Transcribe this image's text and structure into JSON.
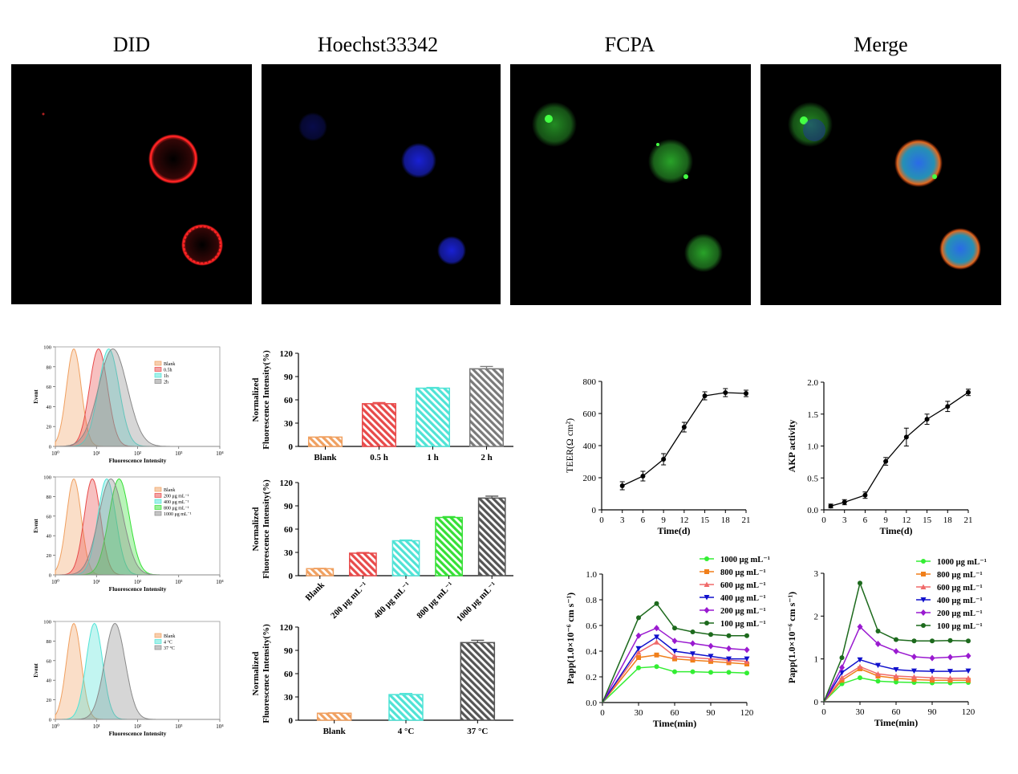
{
  "panels": {
    "titles": [
      "DID",
      "Hoechst33342",
      "FCPA",
      "Merge"
    ]
  },
  "colors": {
    "orange": "#F0A060",
    "red": "#E84A4A",
    "cyan": "#4FE3D6",
    "gray": "#7A7A7A",
    "green": "#36E036",
    "dark": "#333333",
    "blue": "#1010CC",
    "purple": "#9A1AD0",
    "darkgreen": "#1D6A1D",
    "salmon": "#F08080",
    "lime": "#33EE33"
  },
  "chart_data": [
    {
      "id": "flow1",
      "type": "area",
      "xlabel": "Fluorescence Intensity",
      "ylabel": "Event",
      "ylim": [
        0,
        100
      ],
      "xlim": [
        0,
        4
      ],
      "xscale": "log",
      "x_tick_labels": [
        "10⁰",
        "10¹",
        "10²",
        "10³",
        "10⁴"
      ],
      "y_ticks": [
        "0",
        "20",
        "40",
        "60",
        "80",
        "100"
      ],
      "series": [
        {
          "name": "Blank",
          "color": "#F0A060",
          "peak": 0.45,
          "sd": 0.18
        },
        {
          "name": "0.5h",
          "color": "#E84A4A",
          "peak": 1.05,
          "sd": 0.22
        },
        {
          "name": "1h",
          "color": "#4FE3D6",
          "peak": 1.3,
          "sd": 0.25
        },
        {
          "name": "2h",
          "color": "#8A8A8A",
          "peak": 1.4,
          "sd": 0.35
        }
      ]
    },
    {
      "id": "flow2",
      "type": "area",
      "xlabel": "Fluorescence Intensity",
      "ylabel": "Event",
      "ylim": [
        0,
        100
      ],
      "xlim": [
        0,
        4
      ],
      "xscale": "log",
      "x_tick_labels": [
        "10⁰",
        "10¹",
        "10²",
        "10³",
        "10⁴"
      ],
      "y_ticks": [
        "0",
        "20",
        "40",
        "60",
        "80",
        "100"
      ],
      "series": [
        {
          "name": "Blank",
          "color": "#F0A060",
          "peak": 0.45,
          "sd": 0.18
        },
        {
          "name": "200 μg mL⁻¹",
          "color": "#E84A4A",
          "peak": 0.9,
          "sd": 0.2
        },
        {
          "name": "400 μg mL⁻¹",
          "color": "#4FE3D6",
          "peak": 1.25,
          "sd": 0.22
        },
        {
          "name": "800 μg mL⁻¹",
          "color": "#36E036",
          "peak": 1.55,
          "sd": 0.25
        },
        {
          "name": "1000 μg mL⁻¹",
          "color": "#8A8A8A",
          "peak": 1.35,
          "sd": 0.3
        }
      ]
    },
    {
      "id": "flow3",
      "type": "area",
      "xlabel": "Fluorescence Intensity",
      "ylabel": "Event",
      "ylim": [
        0,
        100
      ],
      "xlim": [
        0,
        4
      ],
      "xscale": "log",
      "x_tick_labels": [
        "10⁰",
        "10¹",
        "10²",
        "10³",
        "10⁴"
      ],
      "y_ticks": [
        "0",
        "20",
        "40",
        "60",
        "80",
        "100"
      ],
      "series": [
        {
          "name": "Blank",
          "color": "#F0A060",
          "peak": 0.45,
          "sd": 0.18
        },
        {
          "name": "4 °C",
          "color": "#4FE3D6",
          "peak": 0.95,
          "sd": 0.2
        },
        {
          "name": "37 °C",
          "color": "#8A8A8A",
          "peak": 1.45,
          "sd": 0.25
        }
      ]
    },
    {
      "id": "bar1",
      "type": "bar",
      "ylabel_lines": [
        "Normalized",
        "Fluorescence Intensity(%)"
      ],
      "ylim": [
        0,
        120
      ],
      "y_ticks": [
        0,
        30,
        60,
        90,
        120
      ],
      "categories": [
        "Blank",
        "0.5 h",
        "1 h",
        "2 h"
      ],
      "values": [
        12,
        55,
        75,
        100
      ],
      "errors": [
        0.5,
        1.5,
        1,
        3
      ],
      "colors": [
        "#F0A060",
        "#E84A4A",
        "#4FE3D6",
        "#7A7A7A"
      ],
      "rotate_labels": false
    },
    {
      "id": "bar2",
      "type": "bar",
      "ylabel_lines": [
        "Normalized",
        "Fluorescence Intensity(%)"
      ],
      "ylim": [
        0,
        120
      ],
      "y_ticks": [
        0,
        30,
        60,
        90,
        120
      ],
      "categories": [
        "Blank",
        "200 μg mL⁻¹",
        "400 μg mL⁻¹",
        "800 μg mL⁻¹",
        "1000 μg mL⁻¹"
      ],
      "values": [
        9,
        29,
        45,
        75,
        100
      ],
      "errors": [
        0.5,
        0.8,
        1,
        1.2,
        2.5
      ],
      "colors": [
        "#F0A060",
        "#E84A4A",
        "#4FE3D6",
        "#36E036",
        "#555555"
      ],
      "rotate_labels": true
    },
    {
      "id": "bar3",
      "type": "bar",
      "ylabel_lines": [
        "Normalized",
        "Fluorescence Intensity(%)"
      ],
      "ylim": [
        0,
        120
      ],
      "y_ticks": [
        0,
        30,
        60,
        90,
        120
      ],
      "categories": [
        "Blank",
        "4 °C",
        "37 °C"
      ],
      "values": [
        9,
        33,
        100
      ],
      "errors": [
        0.5,
        1.5,
        3
      ],
      "colors": [
        "#F0A060",
        "#4FE3D6",
        "#555555"
      ],
      "rotate_labels": false
    },
    {
      "id": "teer",
      "type": "line",
      "xlabel": "Time(d)",
      "ylabel": "TEER(Ω cm²)",
      "xlim": [
        0,
        21
      ],
      "ylim": [
        0,
        800
      ],
      "x_ticks": [
        0,
        3,
        6,
        9,
        12,
        15,
        18,
        21
      ],
      "y_ticks": [
        0,
        200,
        400,
        600,
        800
      ],
      "x": [
        3,
        6,
        9,
        12,
        15,
        18,
        21
      ],
      "values": [
        150,
        210,
        315,
        515,
        710,
        730,
        725
      ],
      "errors": [
        25,
        30,
        35,
        30,
        25,
        25,
        20
      ],
      "color": "#000000"
    },
    {
      "id": "akp",
      "type": "line",
      "xlabel": "Time(d)",
      "ylabel": "AKP activity",
      "xlim": [
        0,
        21
      ],
      "ylim": [
        0,
        2.0
      ],
      "x_ticks": [
        0,
        3,
        6,
        9,
        12,
        15,
        18,
        21
      ],
      "y_ticks": [
        "0.0",
        "0.5",
        "1.0",
        "1.5",
        "2.0"
      ],
      "x": [
        1,
        3,
        6,
        9,
        12,
        15,
        18,
        21
      ],
      "values": [
        0.06,
        0.12,
        0.23,
        0.76,
        1.14,
        1.42,
        1.62,
        1.84
      ],
      "errors": [
        0.03,
        0.04,
        0.05,
        0.06,
        0.14,
        0.08,
        0.08,
        0.05
      ],
      "color": "#000000"
    },
    {
      "id": "papp1",
      "type": "line",
      "xlabel": "Time(min)",
      "ylabel": "Papp(1.0×10⁻⁶ cm s⁻¹)",
      "xlim": [
        0,
        120
      ],
      "ylim": [
        0,
        1.0
      ],
      "x_ticks": [
        0,
        30,
        60,
        90,
        120
      ],
      "y_ticks": [
        "0.0",
        "0.2",
        "0.4",
        "0.6",
        "0.8",
        "1.0"
      ],
      "x": [
        0,
        30,
        45,
        60,
        75,
        90,
        105,
        120
      ],
      "series": [
        {
          "name": "1000 μg mL⁻¹",
          "color": "#33EE33",
          "marker": "circle",
          "values": [
            0,
            0.27,
            0.28,
            0.24,
            0.24,
            0.235,
            0.235,
            0.23
          ]
        },
        {
          "name": "800 μg mL⁻¹",
          "color": "#F07F1A",
          "marker": "square",
          "values": [
            0,
            0.35,
            0.37,
            0.34,
            0.33,
            0.32,
            0.31,
            0.3
          ]
        },
        {
          "name": "600 μg mL⁻¹",
          "color": "#F06A6A",
          "marker": "triangle",
          "values": [
            0,
            0.39,
            0.47,
            0.36,
            0.35,
            0.34,
            0.33,
            0.32
          ]
        },
        {
          "name": "400 μg mL⁻¹",
          "color": "#1010CC",
          "marker": "tri-down",
          "values": [
            0,
            0.42,
            0.51,
            0.4,
            0.38,
            0.36,
            0.34,
            0.34
          ]
        },
        {
          "name": "200 μg mL⁻¹",
          "color": "#9A1AD0",
          "marker": "diamond",
          "values": [
            0,
            0.52,
            0.58,
            0.48,
            0.46,
            0.44,
            0.42,
            0.41
          ]
        },
        {
          "name": "100 μg mL⁻¹",
          "color": "#1D6A1D",
          "marker": "circle",
          "values": [
            0,
            0.66,
            0.77,
            0.58,
            0.55,
            0.53,
            0.52,
            0.52
          ]
        }
      ]
    },
    {
      "id": "papp2",
      "type": "line",
      "xlabel": "Time(min)",
      "ylabel": "Papp(1.0×10⁻⁶ cm s⁻¹)",
      "xlim": [
        0,
        120
      ],
      "ylim": [
        0,
        3
      ],
      "x_ticks": [
        0,
        30,
        60,
        90,
        120
      ],
      "y_ticks": [
        "0",
        "1",
        "2",
        "3"
      ],
      "x": [
        0,
        15,
        30,
        45,
        60,
        75,
        90,
        105,
        120
      ],
      "series": [
        {
          "name": "1000 μg mL⁻¹",
          "color": "#33EE33",
          "marker": "circle",
          "values": [
            0,
            0.42,
            0.56,
            0.48,
            0.46,
            0.45,
            0.44,
            0.44,
            0.45
          ]
        },
        {
          "name": "800 μg mL⁻¹",
          "color": "#F07F1A",
          "marker": "square",
          "values": [
            0,
            0.5,
            0.77,
            0.6,
            0.55,
            0.52,
            0.5,
            0.5,
            0.5
          ]
        },
        {
          "name": "600 μg mL⁻¹",
          "color": "#F06A6A",
          "marker": "triangle",
          "values": [
            0,
            0.56,
            0.82,
            0.65,
            0.6,
            0.58,
            0.56,
            0.55,
            0.55
          ]
        },
        {
          "name": "400 μg mL⁻¹",
          "color": "#1010CC",
          "marker": "tri-down",
          "values": [
            0,
            0.68,
            0.98,
            0.85,
            0.75,
            0.72,
            0.71,
            0.71,
            0.72
          ]
        },
        {
          "name": "200 μg mL⁻¹",
          "color": "#9A1AD0",
          "marker": "diamond",
          "values": [
            0,
            0.8,
            1.75,
            1.35,
            1.18,
            1.05,
            1.02,
            1.04,
            1.07
          ]
        },
        {
          "name": "100 μg mL⁻¹",
          "color": "#1D6A1D",
          "marker": "circle",
          "values": [
            0,
            1.03,
            2.77,
            1.65,
            1.45,
            1.42,
            1.42,
            1.43,
            1.42
          ]
        }
      ]
    }
  ]
}
